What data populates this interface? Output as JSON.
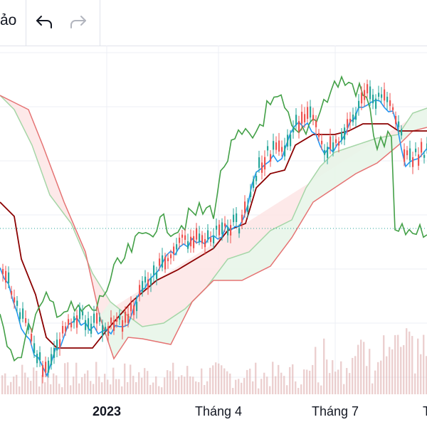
{
  "toolbar": {
    "partial_label": "ảo",
    "undo_icon": "undo-icon",
    "redo_icon": "redo-icon"
  },
  "chart_data": {
    "type": "candlestick",
    "x_ticks": [
      "2023",
      "Tháng 4",
      "Tháng 7"
    ],
    "x_ticks_bold": [
      "2023"
    ],
    "right_edge_tick": "T",
    "colors": {
      "up": "#26a69a",
      "down": "#ef5350",
      "tenkan": "#2196f3",
      "kijun": "#8b0000",
      "lagging": "#43a047",
      "span_a": "#a5d6a7",
      "span_b": "#e57373",
      "bull_cloud": "#e8f5e9",
      "bear_cloud": "#fde7e7",
      "volume": "#e0b0b0",
      "price_line": "#26a69a",
      "grid": "#eceff4"
    },
    "indicators": [
      "tenkan",
      "kijun",
      "lagging",
      "span_a",
      "span_b",
      "volume"
    ],
    "grid": true
  }
}
